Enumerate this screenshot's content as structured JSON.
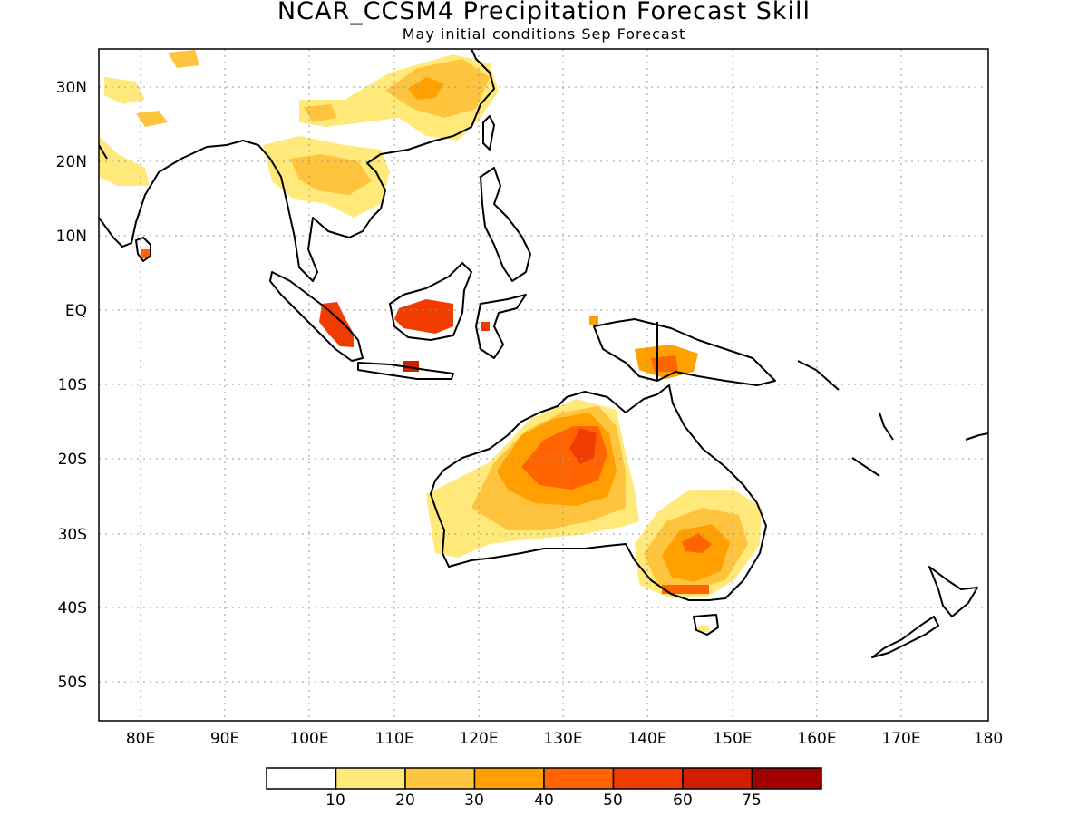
{
  "header": {
    "title": "NCAR_CCSM4 Precipitation Forecast Skill",
    "subtitle": "May initial conditions  Sep Forecast"
  },
  "axes": {
    "lon_labels": [
      "80E",
      "90E",
      "100E",
      "110E",
      "120E",
      "130E",
      "140E",
      "150E",
      "160E",
      "170E",
      "180"
    ],
    "lat_labels": [
      "30N",
      "20N",
      "10N",
      "EQ",
      "10S",
      "20S",
      "30S",
      "40S",
      "50S"
    ],
    "lon_range": [
      75,
      180
    ],
    "lat_range": [
      -55,
      35
    ],
    "grid": "dotted"
  },
  "legend": {
    "tick_labels": [
      "10",
      "20",
      "30",
      "40",
      "50",
      "60",
      "75"
    ],
    "colors": [
      "#ffffff",
      "#ffe97a",
      "#ffc43d",
      "#ffa000",
      "#ff6400",
      "#f03c00",
      "#d21e00",
      "#a00000"
    ]
  },
  "skill_regions": [
    {
      "name": "northwest-australia",
      "level": 3
    },
    {
      "name": "northwest-australia-core",
      "level": 4
    },
    {
      "name": "northwest-australia-peak",
      "level": 5
    },
    {
      "name": "southeast-australia",
      "level": 3
    },
    {
      "name": "southeast-australia-core",
      "level": 4
    },
    {
      "name": "southern-china",
      "level": 2
    },
    {
      "name": "indochina",
      "level": 2
    },
    {
      "name": "sumatra",
      "level": 5
    },
    {
      "name": "borneo",
      "level": 5
    },
    {
      "name": "java",
      "level": 6
    },
    {
      "name": "new-guinea",
      "level": 3
    }
  ]
}
